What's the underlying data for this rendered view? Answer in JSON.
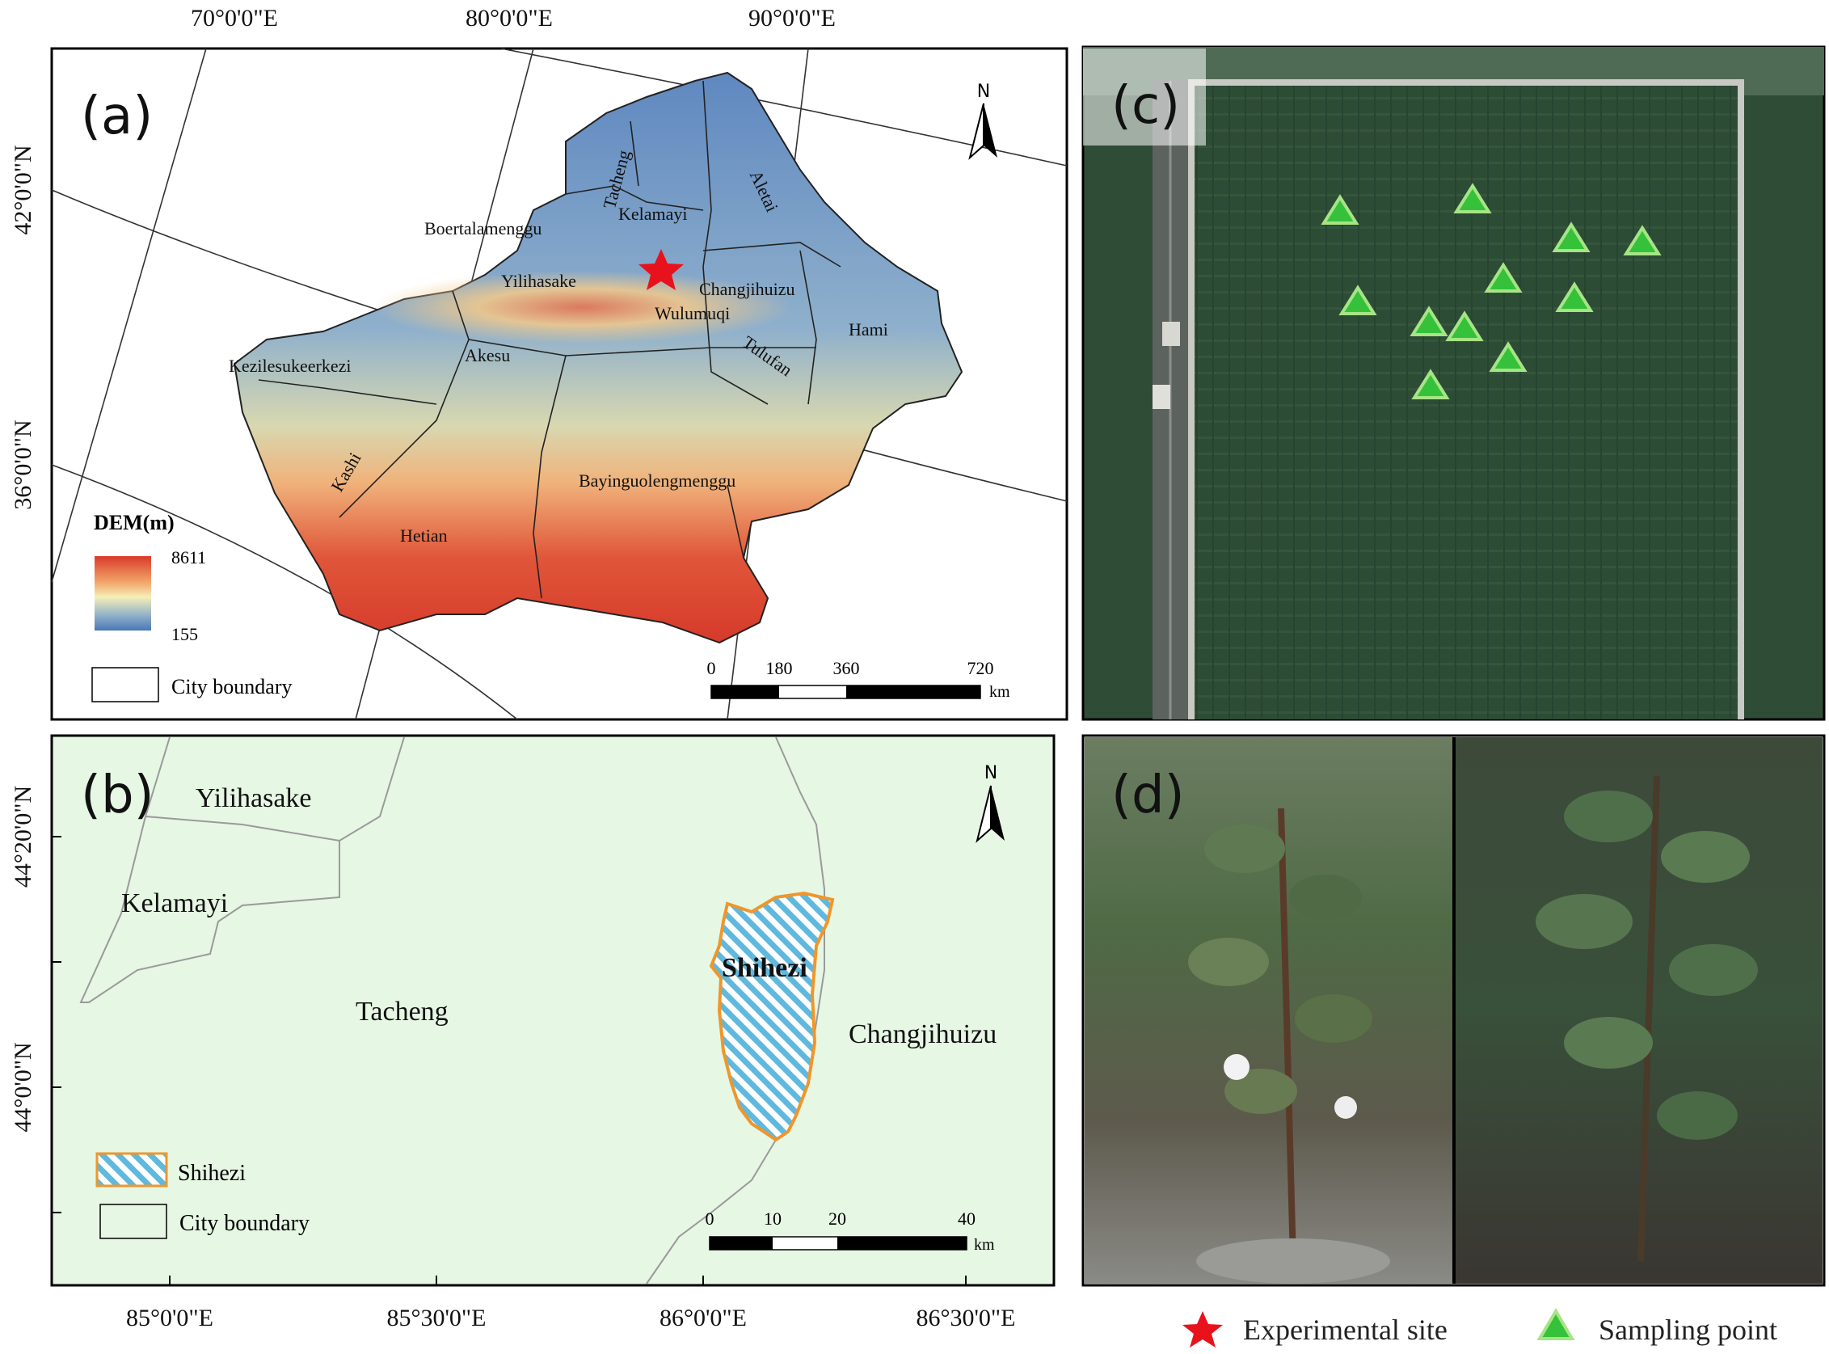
{
  "panel_a": {
    "label": "(a)",
    "top_coords": [
      "70°0'0\"E",
      "80°0'0\"E",
      "90°0'0\"E"
    ],
    "left_coords": [
      "42°0'0\"N",
      "36°0'0\"N"
    ],
    "north": "N",
    "regions": [
      "Tacheng",
      "Aletai",
      "Kelamayi",
      "Boertalamenggu",
      "Yilihasake",
      "Changjihuizu",
      "Wulumuqi",
      "Hami",
      "Tulufan",
      "Akesu",
      "Kezilesukeerkezi",
      "Kashi",
      "Bayinguolengmenggu",
      "Hetian"
    ],
    "legend": {
      "title": "DEM(m)",
      "max": "8611",
      "min": "155",
      "boundary": "City boundary"
    },
    "scale": {
      "ticks": [
        "0",
        "180",
        "360",
        "720"
      ],
      "unit": "km"
    },
    "colors": {
      "low": "#4a78b8",
      "mid": "#f6efb8",
      "high": "#d93a2a",
      "star": "#e8121c"
    }
  },
  "panel_b": {
    "label": "(b)",
    "bottom_coords": [
      "85°0'0\"E",
      "85°30'0\"E",
      "86°0'0\"E",
      "86°30'0\"E"
    ],
    "left_coords": [
      "44°20'0\"N",
      "44°0'0\"N"
    ],
    "north": "N",
    "regions": [
      "Yilihasake",
      "Kelamayi",
      "Tacheng",
      "Shihezi",
      "Changjihuizu"
    ],
    "legend": {
      "shihezi": "Shihezi",
      "boundary": "City boundary"
    },
    "scale": {
      "ticks": [
        "0",
        "10",
        "20",
        "40"
      ],
      "unit": "km"
    },
    "colors": {
      "background": "#e6f7e4",
      "outline": "#f0962a",
      "hatch": "#5fb9de"
    }
  },
  "panel_c": {
    "label": "(c)",
    "colors": {
      "field": "#2b4a33",
      "marker": "#35c23a",
      "marker_edge": "#a6e486"
    }
  },
  "panel_d": {
    "label": "(d)"
  },
  "legend_bottom": {
    "experimental_site": "Experimental site",
    "sampling_point": "Sampling point"
  }
}
